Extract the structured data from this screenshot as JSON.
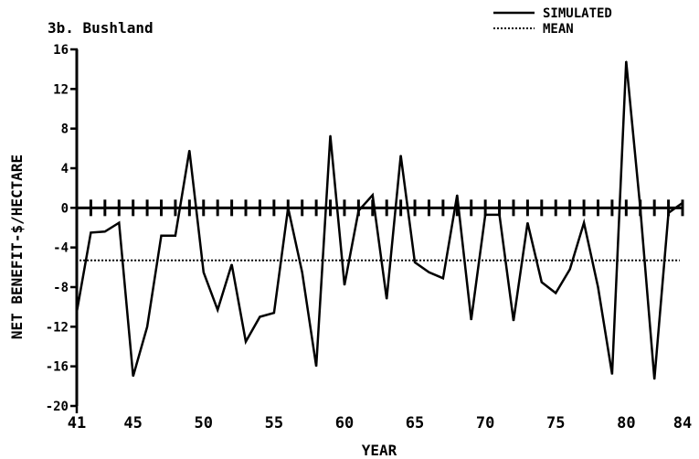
{
  "chart_data": {
    "type": "line",
    "title": "3b.  Bushland",
    "xlabel": "YEAR",
    "ylabel": "NET BENEFIT-$/HECTARE",
    "xlim": [
      41,
      84
    ],
    "ylim": [
      -20,
      16
    ],
    "xticks": [
      41,
      45,
      50,
      55,
      60,
      65,
      70,
      75,
      80,
      84
    ],
    "yticks": [
      16,
      12,
      8,
      4,
      0,
      -4,
      -8,
      -12,
      -16,
      -20
    ],
    "ytick_labels": [
      "16",
      "12",
      "8",
      "4",
      "0",
      "-4",
      "-8",
      "-12",
      "-16",
      "-20"
    ],
    "grid": false,
    "legend_position": "top-right",
    "series": [
      {
        "name": "SIMULATED",
        "style": "solid",
        "color": "#000000",
        "x": [
          41,
          42,
          43,
          44,
          45,
          46,
          47,
          48,
          49,
          50,
          51,
          52,
          53,
          54,
          55,
          56,
          57,
          58,
          59,
          60,
          61,
          62,
          63,
          64,
          65,
          66,
          67,
          68,
          69,
          70,
          71,
          72,
          73,
          74,
          75,
          76,
          77,
          78,
          79,
          80,
          81,
          82,
          83,
          84
        ],
        "y": [
          -10.5,
          -2.5,
          -2.4,
          -1.5,
          -17,
          -12,
          -2.8,
          -2.8,
          5.8,
          -6.5,
          -10.3,
          -5.7,
          -13.5,
          -11,
          -10.6,
          0,
          -6.5,
          -16,
          7.3,
          -7.8,
          -0.3,
          1.3,
          -9.2,
          5.3,
          -5.5,
          -6.5,
          -7.1,
          1.3,
          -11.3,
          -0.7,
          -0.7,
          -11.4,
          -1.5,
          -7.5,
          -8.6,
          -6.2,
          -1.5,
          -8,
          -16.8,
          14.8,
          0,
          -17.3,
          -0.5,
          0.5
        ]
      },
      {
        "name": "MEAN",
        "style": "dotted",
        "color": "#000000",
        "value": -5.3
      }
    ]
  }
}
